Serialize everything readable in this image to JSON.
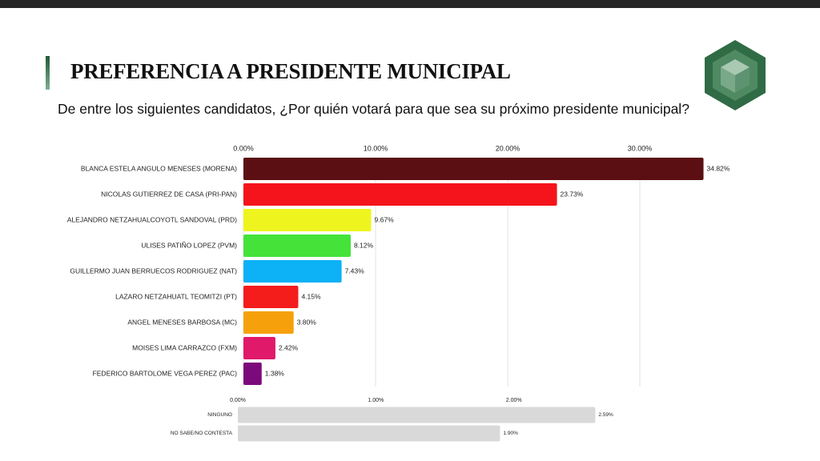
{
  "chart_data": [
    {
      "type": "bar",
      "orientation": "horizontal",
      "title": "PREFERENCIA A PRESIDENTE MUNICIPAL",
      "subtitle": "De entre los siguientes candidatos, ¿Por quién votará para que sea su próximo presidente municipal?",
      "categories": [
        "BLANCA ESTELA ANGULO MENESES (MORENA)",
        "NICOLAS GUTIERREZ DE CASA (PRI-PAN)",
        "ALEJANDRO NETZAHUALCOYOTL SANDOVAL (PRD)",
        "ULISES PATIÑO LOPEZ (PVM)",
        "GUILLERMO JUAN BERRUECOS RODRIGUEZ (NAT)",
        "LAZARO NETZAHUATL TEOMITZI (PT)",
        "ANGEL MENESES BARBOSA (MC)",
        "MOISES LIMA CARRAZCO (FXM)",
        "FEDERICO BARTOLOME VEGA PEREZ (PAC)"
      ],
      "values": [
        34.82,
        23.73,
        9.67,
        8.12,
        7.43,
        4.15,
        3.8,
        2.42,
        1.38
      ],
      "value_labels": [
        "34.82%",
        "23.73%",
        "9.67%",
        "8.12%",
        "7.43%",
        "4.15%",
        "3.80%",
        "2.42%",
        "1.38%"
      ],
      "colors": [
        "#5c0f13",
        "#f5141b",
        "#eef51e",
        "#45e23a",
        "#0cb1f6",
        "#f51c1c",
        "#f6a10b",
        "#e0196b",
        "#7d0a7d"
      ],
      "xlim": [
        0,
        35
      ],
      "xticks": [
        {
          "value": 0,
          "label": "0.00%"
        },
        {
          "value": 10,
          "label": "10.00%"
        },
        {
          "value": 20,
          "label": "20.00%"
        },
        {
          "value": 30,
          "label": "30.00%"
        }
      ],
      "grid": true
    },
    {
      "type": "bar",
      "orientation": "horizontal",
      "categories": [
        "NINGUNO",
        "NO SABE/NO CONTESTA"
      ],
      "values": [
        2.59,
        1.9
      ],
      "value_labels": [
        "2.59%",
        "1.90%"
      ],
      "colors": [
        "#d9d9d9",
        "#d9d9d9"
      ],
      "xlim": [
        0,
        3
      ],
      "xticks": [
        {
          "value": 0,
          "label": "0.00%"
        },
        {
          "value": 1,
          "label": "1.00%"
        },
        {
          "value": 2,
          "label": "2.00%"
        }
      ],
      "grid": false
    }
  ]
}
